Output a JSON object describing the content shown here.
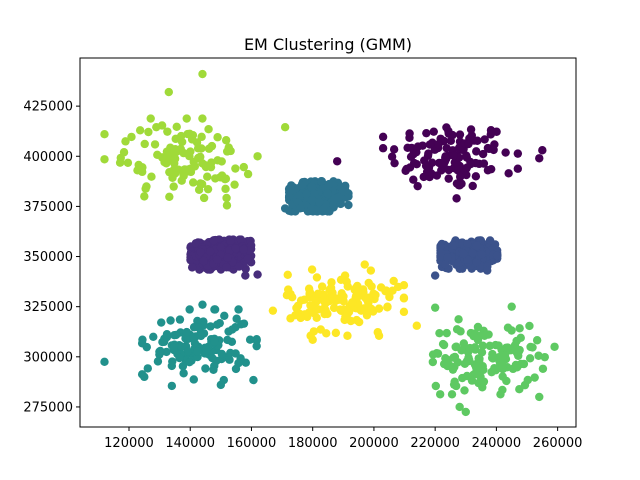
{
  "chart_data": {
    "type": "scatter",
    "title": "EM Clustering (GMM)",
    "xlabel": "",
    "ylabel": "",
    "xlim": [
      104000,
      266000
    ],
    "ylim": [
      265000,
      449000
    ],
    "xticks": [
      120000,
      140000,
      160000,
      180000,
      200000,
      220000,
      240000,
      260000
    ],
    "yticks": [
      275000,
      300000,
      325000,
      350000,
      375000,
      400000,
      425000
    ],
    "xtick_labels": [
      "120000",
      "140000",
      "160000",
      "180000",
      "200000",
      "220000",
      "240000",
      "260000"
    ],
    "ytick_labels": [
      "275000",
      "300000",
      "325000",
      "350000",
      "375000",
      "400000",
      "425000"
    ],
    "grid": false,
    "clusters": [
      {
        "color": "#440154",
        "center": [
          225000,
          400000
        ],
        "spread": [
          10000,
          8500
        ],
        "count": 120,
        "outliers": [
          [
            255000,
            403000
          ],
          [
            254000,
            399000
          ],
          [
            244000,
            391500
          ],
          [
            188000,
            397500
          ],
          [
            227000,
            379000
          ]
        ]
      },
      {
        "color": "#472d7b",
        "center": [
          150000,
          351000
        ],
        "spread": [
          4500,
          3400
        ],
        "count": 450,
        "outliers": [
          [
            162000,
            341000
          ],
          [
            158000,
            340500
          ]
        ]
      },
      {
        "color": "#3b528b",
        "center": [
          231000,
          351000
        ],
        "spread": [
          4200,
          3200
        ],
        "count": 420,
        "outliers": [
          [
            220000,
            340500
          ],
          [
            237000,
            343000
          ]
        ]
      },
      {
        "color": "#2c728e",
        "center": [
          182000,
          380000
        ],
        "spread": [
          4400,
          3400
        ],
        "count": 450,
        "outliers": [
          [
            171000,
            374000
          ],
          [
            173000,
            383000
          ]
        ]
      },
      {
        "color": "#21918c",
        "center": [
          143000,
          306000
        ],
        "spread": [
          8500,
          8000
        ],
        "count": 130,
        "outliers": [
          [
            112000,
            297500
          ],
          [
            125000,
            290000
          ],
          [
            134000,
            285500
          ],
          [
            150000,
            286000
          ],
          [
            144000,
            326000
          ]
        ]
      },
      {
        "color": "#5ec962",
        "center": [
          236000,
          300000
        ],
        "spread": [
          9000,
          8500
        ],
        "count": 130,
        "outliers": [
          [
            259000,
            305000
          ],
          [
            254000,
            280000
          ],
          [
            230000,
            272500
          ],
          [
            228000,
            275000
          ],
          [
            220000,
            324500
          ],
          [
            245000,
            325000
          ]
        ]
      },
      {
        "color": "#a0da39",
        "center": [
          138000,
          399000
        ],
        "spread": [
          9500,
          9000
        ],
        "count": 110,
        "outliers": [
          [
            144000,
            441000
          ],
          [
            133000,
            432000
          ],
          [
            112000,
            411000
          ],
          [
            112000,
            398500
          ],
          [
            171000,
            414500
          ],
          [
            162000,
            400000
          ],
          [
            125000,
            380000
          ],
          [
            152000,
            375500
          ]
        ]
      },
      {
        "color": "#fde725",
        "center": [
          190000,
          327000
        ],
        "spread": [
          9000,
          7500
        ],
        "count": 140,
        "outliers": [
          [
            197000,
            346000
          ],
          [
            199000,
            343000
          ],
          [
            214000,
            315500
          ],
          [
            167000,
            323000
          ],
          [
            180000,
            308500
          ],
          [
            172000,
            333500
          ]
        ]
      }
    ]
  }
}
